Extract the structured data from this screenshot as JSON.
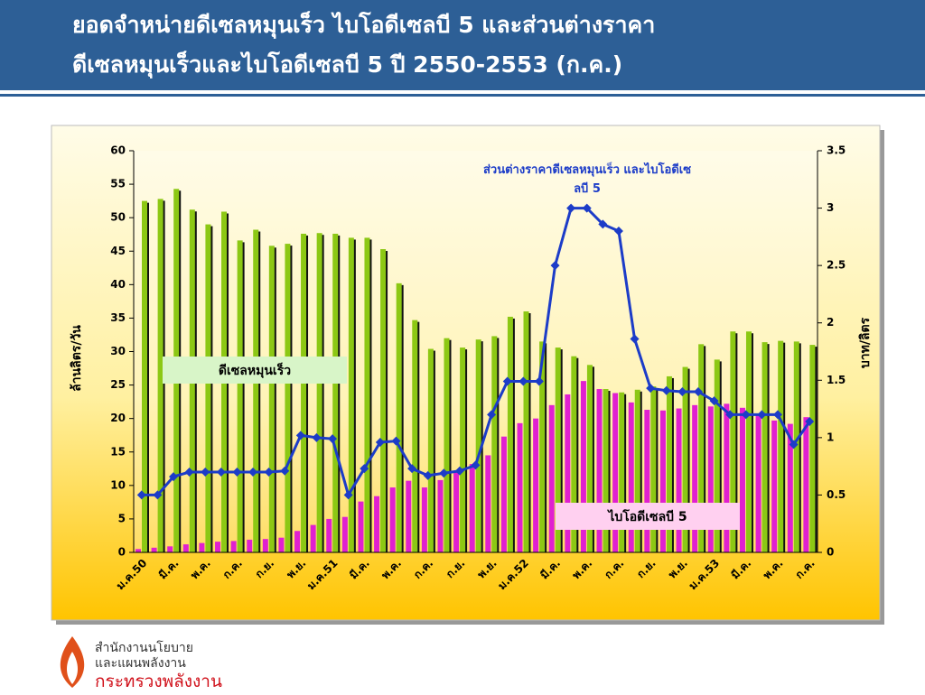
{
  "chart_data": {
    "type": "bar-line",
    "title": [
      "ยอดจำหน่ายดีเซลหมุนเร็ว  ไบโอดีเซลบี 5 และส่วนต่างราคา",
      "ดีเซลหมุนเร็วและไบโอดีเซลบี 5 ปี 2550-2553 (ก.ค.)"
    ],
    "ylabel": "ล้านลิตร/วัน",
    "y2label": "บาท/ลิตร",
    "categories": [
      "ม.ค.50",
      null,
      "มี.ค.",
      null,
      "พ.ค.",
      null,
      "ก.ค.",
      null,
      "ก.ย.",
      null,
      "พ.ย.",
      null,
      "ม.ค.51",
      null,
      "มี.ค.",
      null,
      "พ.ค.",
      null,
      "ก.ค.",
      null,
      "ก.ย.",
      null,
      "พ.ย.",
      null,
      "ม.ค.52",
      null,
      "มี.ค.",
      null,
      "พ.ค.",
      null,
      "ก.ค.",
      null,
      "ก.ย.",
      null,
      "พ.ย.",
      null,
      "ม.ค.53",
      null,
      "มี.ค.",
      null,
      "พ.ค.",
      null,
      "ก.ค."
    ],
    "series": [
      {
        "name": "ไบโอดีเซลบี 5",
        "type": "bar",
        "color": "#e020d0",
        "values": [
          0.5,
          0.7,
          0.9,
          1.2,
          1.4,
          1.6,
          1.7,
          1.9,
          2.0,
          2.2,
          3.2,
          4.1,
          5.0,
          5.3,
          7.6,
          8.4,
          9.7,
          10.7,
          9.7,
          10.8,
          12.0,
          13.2,
          14.5,
          17.3,
          19.3,
          20.0,
          22.0,
          23.6,
          25.6,
          24.4,
          23.8,
          22.4,
          21.3,
          21.2,
          21.5,
          22.0,
          21.8,
          22.2,
          21.6,
          20.5,
          19.7,
          19.2,
          20.2
        ]
      },
      {
        "name": "ดีเซลหมุนเร็ว",
        "type": "bar",
        "color": "#8cc814",
        "values": [
          52.5,
          52.8,
          54.3,
          51.2,
          49,
          50.9,
          46.6,
          48.2,
          45.8,
          46.1,
          47.6,
          47.7,
          47.6,
          47.0,
          47.0,
          45.3,
          40.2,
          34.7,
          30.4,
          32.0,
          30.6,
          31.8,
          32.3,
          35.2,
          36.0,
          31.5,
          30.6,
          29.3,
          28.0,
          24.4,
          23.9,
          24.3,
          24.8,
          26.3,
          27.7,
          31.1,
          28.8,
          33.0,
          33.0,
          31.4,
          31.6,
          31.5,
          31.0
        ]
      },
      {
        "name": "ส่วนต่างราคาดีเซลหมุนเร็ว และไบโอดีเซลบี 5",
        "type": "line",
        "axis": "y2",
        "color": "#1c3cc8",
        "values": [
          0.5,
          0.5,
          0.66,
          0.7,
          0.7,
          0.7,
          0.7,
          0.7,
          0.7,
          0.71,
          1.02,
          1.0,
          0.99,
          0.5,
          0.73,
          0.96,
          0.97,
          0.73,
          0.67,
          0.69,
          0.71,
          0.76,
          1.2,
          1.49,
          1.49,
          1.49,
          2.5,
          3.0,
          3.0,
          2.86,
          2.8,
          1.86,
          1.43,
          1.41,
          1.4,
          1.4,
          1.32,
          1.2,
          1.2,
          1.2,
          1.2,
          0.94,
          1.14
        ]
      }
    ],
    "ylim": [
      0,
      60
    ],
    "yticks": [
      0,
      5,
      10,
      15,
      20,
      25,
      30,
      35,
      40,
      45,
      50,
      55,
      60
    ],
    "y2lim": [
      0,
      3.5
    ],
    "y2ticks": [
      0,
      0.5,
      1,
      1.5,
      2,
      2.5,
      3,
      3.5
    ]
  },
  "footer": {
    "org_lines": [
      "สำนักงานนโยบาย",
      "และแผนพลังงาน"
    ],
    "ministry": "กระทรวงพลังงาน"
  }
}
